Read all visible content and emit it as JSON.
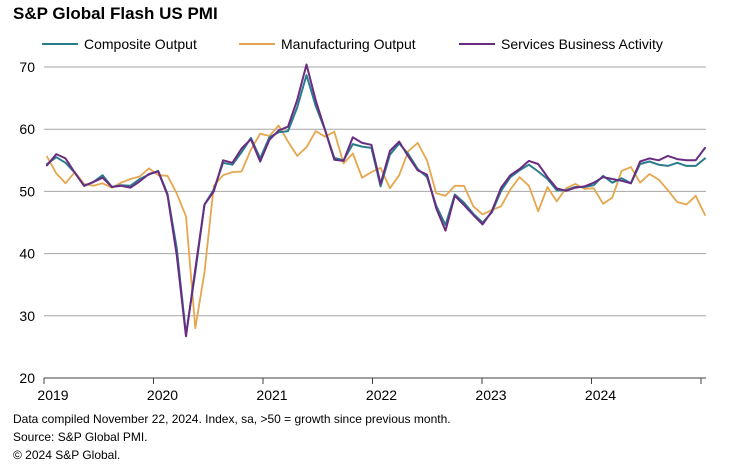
{
  "chart_data": {
    "type": "line",
    "title": "S&P Global Flash US PMI",
    "xlabel": "",
    "ylabel": "",
    "ylim": [
      20,
      70
    ],
    "yticks": [
      20,
      30,
      40,
      50,
      60,
      70
    ],
    "xticks": [
      "2019",
      "2020",
      "2021",
      "2022",
      "2023",
      "2024"
    ],
    "x_start": "2019-01",
    "x_end": "2024-11",
    "grid": "horizontal",
    "legend": "top",
    "series": [
      {
        "name": "Composite Output",
        "color": "#2a7c8c",
        "values": [
          54.4,
          55.5,
          54.6,
          53.0,
          50.9,
          51.5,
          52.6,
          50.7,
          51.0,
          50.9,
          52.0,
          52.7,
          53.3,
          49.6,
          40.9,
          27.0,
          37.0,
          47.9,
          50.3,
          54.6,
          54.3,
          56.3,
          58.6,
          55.3,
          58.7,
          59.5,
          59.7,
          63.5,
          68.7,
          63.7,
          59.9,
          55.4,
          55.0,
          57.6,
          57.2,
          57.0,
          50.8,
          55.9,
          57.7,
          56.0,
          53.6,
          52.3,
          47.7,
          44.6,
          49.5,
          48.2,
          46.4,
          45.0,
          46.6,
          50.1,
          52.3,
          53.4,
          54.3,
          53.2,
          52.0,
          50.2,
          50.2,
          50.7,
          50.7,
          51.0,
          52.5,
          51.4,
          52.1,
          51.3,
          54.4,
          54.8,
          54.3,
          54.1,
          54.6,
          54.1,
          54.1,
          55.3
        ]
      },
      {
        "name": "Manufacturing Output",
        "color": "#e6a64e",
        "values": [
          55.6,
          52.9,
          51.3,
          53.1,
          51.2,
          50.9,
          51.3,
          50.6,
          51.4,
          52.0,
          52.4,
          53.7,
          52.6,
          52.5,
          49.7,
          46.0,
          28.0,
          37.0,
          50.9,
          52.6,
          53.1,
          53.2,
          56.7,
          59.3,
          58.9,
          60.6,
          58.0,
          55.7,
          57.1,
          59.7,
          58.8,
          59.6,
          54.5,
          56.1,
          52.2,
          53.1,
          53.8,
          50.5,
          52.6,
          56.5,
          57.8,
          55.0,
          49.7,
          49.3,
          50.9,
          50.9,
          47.6,
          46.3,
          47.0,
          47.6,
          50.3,
          52.3,
          50.9,
          46.8,
          50.7,
          48.4,
          50.5,
          51.2,
          50.4,
          50.5,
          48.0,
          49.0,
          53.3,
          53.9,
          51.4,
          52.8,
          51.9,
          50.2,
          48.3,
          47.9,
          49.3,
          46.2
        ]
      },
      {
        "name": "Services Business Activity",
        "color": "#6a2c82",
        "values": [
          54.2,
          56.0,
          55.3,
          53.0,
          50.9,
          51.5,
          52.2,
          50.7,
          50.9,
          50.6,
          51.6,
          52.8,
          53.2,
          49.4,
          39.8,
          26.7,
          37.5,
          47.9,
          50.0,
          55.0,
          54.6,
          56.9,
          58.4,
          54.8,
          58.3,
          59.8,
          60.4,
          64.7,
          70.4,
          64.6,
          59.9,
          55.1,
          54.9,
          58.7,
          57.8,
          57.5,
          51.2,
          56.5,
          58.0,
          55.6,
          53.4,
          52.7,
          47.3,
          43.7,
          49.3,
          47.8,
          46.2,
          44.7,
          46.8,
          50.6,
          52.6,
          53.6,
          54.9,
          54.4,
          52.3,
          50.5,
          50.1,
          50.6,
          50.8,
          51.4,
          52.3,
          52.0,
          51.7,
          51.3,
          54.8,
          55.3,
          55.0,
          55.7,
          55.2,
          55.0,
          55.0,
          57.0
        ]
      }
    ]
  },
  "footer": {
    "line1": "Data compiled November 22, 2024. Index, sa, >50 = growth since previous month.",
    "line2": "Source: S&P Global PMI.",
    "line3": "© 2024 S&P Global."
  }
}
